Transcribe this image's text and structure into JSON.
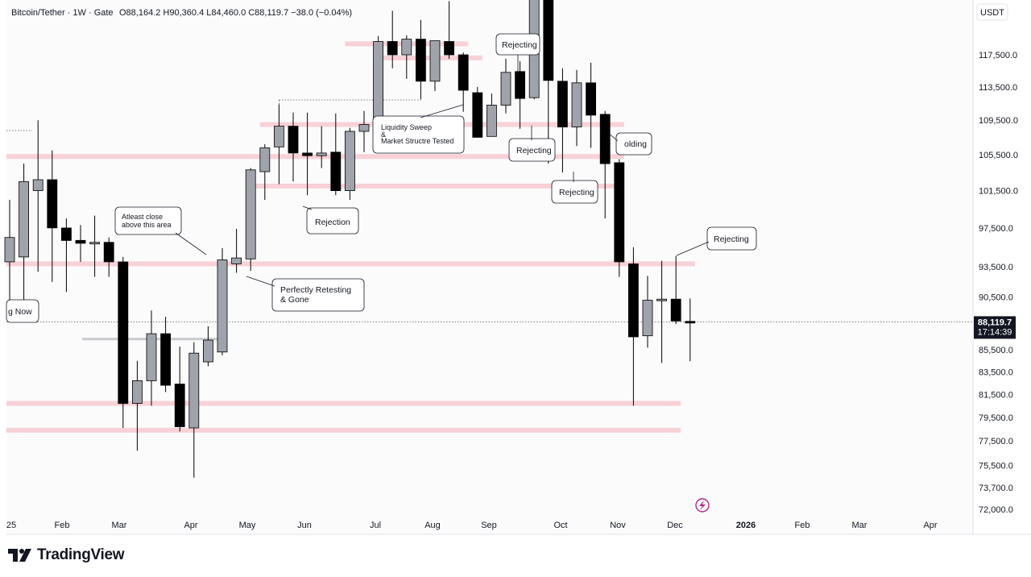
{
  "app": {
    "brand": "TradingView"
  },
  "header": {
    "symbol": "Bitcoin/Tether · 1W · Gate",
    "ohlc": "O88,164.2  H90,360.4  L84,460.0  C88,119.7  −38.0 (−0.04%)"
  },
  "currency_label": "USDT",
  "price_badge": {
    "price": "88,119.7",
    "countdown": "17:14:39"
  },
  "colors": {
    "bull": "#9fa3ab",
    "bear": "#000000",
    "zone": "#f7c9cf",
    "panel_bg": "#fbfbfc",
    "axis_text": "#131722",
    "badge_bg": "#131722",
    "lightning": "#b2268c"
  },
  "chart_data": {
    "type": "candlestick",
    "timeframe": "1W",
    "y_axis": {
      "scale": "log",
      "ylim": [
        71500,
        128000
      ],
      "ticks": [
        "117,500.0",
        "113,500.0",
        "109,500.0",
        "105,500.0",
        "101,500.0",
        "97,500.0",
        "93,500.0",
        "90,500.0",
        "85,500.0",
        "83,500.0",
        "81,500.0",
        "79,500.0",
        "77,500.0",
        "75,500.0",
        "73,700.0",
        "72,000.0"
      ]
    },
    "x_axis": {
      "ticks": [
        "25",
        "Feb",
        "Mar",
        "Apr",
        "May",
        "Jun",
        "Jul",
        "Aug",
        "Sep",
        "Oct",
        "Nov",
        "Dec",
        "2026",
        "Feb",
        "Mar",
        "Apr"
      ]
    },
    "candles": [
      {
        "o": 94000,
        "h": 100500,
        "l": 89000,
        "c": 96500
      },
      {
        "o": 94500,
        "h": 104500,
        "l": 89000,
        "c": 102500
      },
      {
        "o": 101500,
        "h": 109500,
        "l": 93000,
        "c": 102700
      },
      {
        "o": 102700,
        "h": 106000,
        "l": 92000,
        "c": 97500
      },
      {
        "o": 97500,
        "h": 98500,
        "l": 91000,
        "c": 96200
      },
      {
        "o": 96200,
        "h": 97800,
        "l": 94000,
        "c": 95900
      },
      {
        "o": 95900,
        "h": 98800,
        "l": 92500,
        "c": 96000
      },
      {
        "o": 96000,
        "h": 96500,
        "l": 92500,
        "c": 94000
      },
      {
        "o": 94000,
        "h": 94500,
        "l": 78600,
        "c": 80700
      },
      {
        "o": 80700,
        "h": 84500,
        "l": 76700,
        "c": 82700
      },
      {
        "o": 82700,
        "h": 89200,
        "l": 80500,
        "c": 87000
      },
      {
        "o": 87000,
        "h": 88600,
        "l": 81700,
        "c": 82300
      },
      {
        "o": 82400,
        "h": 85800,
        "l": 78300,
        "c": 78700
      },
      {
        "o": 78600,
        "h": 86200,
        "l": 74500,
        "c": 85200
      },
      {
        "o": 84400,
        "h": 87700,
        "l": 84000,
        "c": 86400
      },
      {
        "o": 85300,
        "h": 95400,
        "l": 85000,
        "c": 94200
      },
      {
        "o": 93800,
        "h": 97400,
        "l": 92900,
        "c": 94400
      },
      {
        "o": 94300,
        "h": 104000,
        "l": 93100,
        "c": 103800
      },
      {
        "o": 103600,
        "h": 106700,
        "l": 100500,
        "c": 106300
      },
      {
        "o": 106400,
        "h": 111400,
        "l": 102200,
        "c": 108800
      },
      {
        "o": 108800,
        "h": 110400,
        "l": 102500,
        "c": 105700
      },
      {
        "o": 105700,
        "h": 110400,
        "l": 101000,
        "c": 105400
      },
      {
        "o": 105400,
        "h": 108800,
        "l": 104000,
        "c": 105700
      },
      {
        "o": 105800,
        "h": 110300,
        "l": 101000,
        "c": 101500
      },
      {
        "o": 101500,
        "h": 108600,
        "l": 100500,
        "c": 108200
      },
      {
        "o": 108200,
        "h": 110600,
        "l": 105800,
        "c": 109000
      },
      {
        "o": 109000,
        "h": 119900,
        "l": 105900,
        "c": 119200
      },
      {
        "o": 119200,
        "h": 123200,
        "l": 115800,
        "c": 117500
      },
      {
        "o": 117500,
        "h": 120000,
        "l": 114500,
        "c": 119500
      },
      {
        "o": 119500,
        "h": 122000,
        "l": 112000,
        "c": 114200
      },
      {
        "o": 114200,
        "h": 119300,
        "l": 113000,
        "c": 119300
      },
      {
        "o": 119200,
        "h": 124500,
        "l": 117000,
        "c": 117500
      },
      {
        "o": 117500,
        "h": 117800,
        "l": 110500,
        "c": 113100
      },
      {
        "o": 112800,
        "h": 113500,
        "l": 107800,
        "c": 107500
      },
      {
        "o": 107600,
        "h": 112700,
        "l": 107600,
        "c": 111300
      },
      {
        "o": 111300,
        "h": 117000,
        "l": 110300,
        "c": 115300
      },
      {
        "o": 115400,
        "h": 116700,
        "l": 108500,
        "c": 112100
      },
      {
        "o": 112200,
        "h": 126300,
        "l": 112000,
        "c": 125300
      },
      {
        "o": 125200,
        "h": 125400,
        "l": 104500,
        "c": 114300
      },
      {
        "o": 114200,
        "h": 115800,
        "l": 103500,
        "c": 108700
      },
      {
        "o": 108700,
        "h": 115600,
        "l": 106500,
        "c": 114000
      },
      {
        "o": 114000,
        "h": 116500,
        "l": 106300,
        "c": 110100
      },
      {
        "o": 110200,
        "h": 110600,
        "l": 98500,
        "c": 104500
      },
      {
        "o": 104600,
        "h": 105000,
        "l": 92500,
        "c": 94000
      },
      {
        "o": 93800,
        "h": 95500,
        "l": 80500,
        "c": 86700
      },
      {
        "o": 86800,
        "h": 92600,
        "l": 85700,
        "c": 90200
      },
      {
        "o": 90200,
        "h": 94100,
        "l": 84300,
        "c": 90300
      },
      {
        "o": 90300,
        "h": 94600,
        "l": 87900,
        "c": 88200
      },
      {
        "o": 88164.2,
        "h": 90360.4,
        "l": 84460,
        "c": 88119.7
      }
    ],
    "zones": [
      {
        "price": 118900,
        "from": 24,
        "to": 32
      },
      {
        "price": 117100,
        "from": 26,
        "to": 33
      },
      {
        "price": 109000,
        "from": 18,
        "to": 43
      },
      {
        "price": 105300,
        "from": 0,
        "to": 43
      },
      {
        "price": 102000,
        "from": 17,
        "to": 43
      },
      {
        "price": 93800,
        "from": 0,
        "to": 48
      },
      {
        "price": 80700,
        "from": 0,
        "to": 47
      },
      {
        "price": 78400,
        "from": 0,
        "to": 47
      }
    ],
    "annotations": [
      {
        "text": "g Now"
      },
      {
        "text": "Atleast close\nabove this area"
      },
      {
        "text": "Perfectly Retesting\n& Gone"
      },
      {
        "text": "Rejection"
      },
      {
        "text": "Liquidity Sweep\n&\nMarket Structre Tested"
      },
      {
        "text": "Rejecting"
      },
      {
        "text": "Rejecting"
      },
      {
        "text": "Rejecting"
      },
      {
        "text": "olding"
      },
      {
        "text": "Rejecting"
      }
    ]
  }
}
